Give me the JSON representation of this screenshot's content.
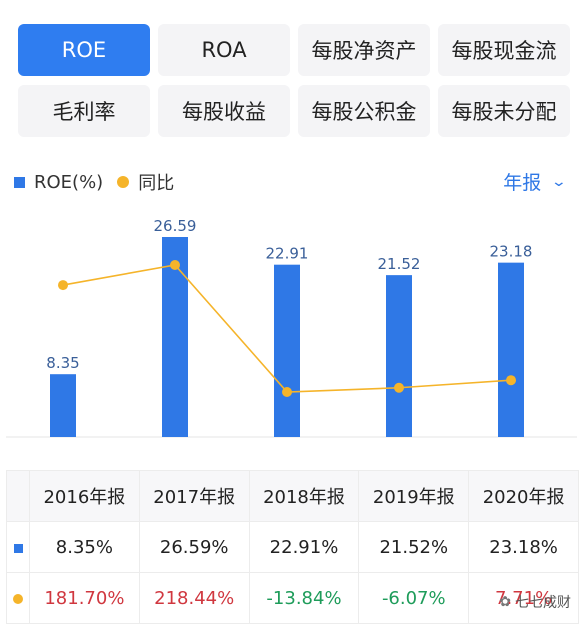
{
  "tabs": [
    "ROE",
    "ROA",
    "每股净资产",
    "每股现金流",
    "毛利率",
    "每股收益",
    "每股公积金",
    "每股未分配"
  ],
  "active_tab": "ROE",
  "legend": {
    "bar_label": "ROE(%)",
    "line_label": "同比"
  },
  "period_selector": {
    "label": "年报",
    "icon": "chevron-down-icon"
  },
  "colors": {
    "accent": "#2f7df0",
    "bar": "#2f78e6",
    "line": "#f5b42a",
    "positive": "#d0373f",
    "negative": "#1e9c5a"
  },
  "chart_data": {
    "type": "bar",
    "categories": [
      "2016年报",
      "2017年报",
      "2018年报",
      "2019年报",
      "2020年报"
    ],
    "series": [
      {
        "name": "ROE(%)",
        "type": "bar",
        "values": [
          8.35,
          26.59,
          22.91,
          21.52,
          23.18
        ]
      },
      {
        "name": "同比",
        "type": "line",
        "values": [
          181.7,
          218.44,
          -13.84,
          -6.07,
          7.71
        ]
      }
    ],
    "data_labels": [
      "8.35",
      "26.59",
      "22.91",
      "21.52",
      "23.18"
    ],
    "legend": "top-left"
  },
  "table": {
    "headers": [
      "2016年报",
      "2017年报",
      "2018年报",
      "2019年报",
      "2020年报"
    ],
    "roe_row": [
      "8.35%",
      "26.59%",
      "22.91%",
      "21.52%",
      "23.18%"
    ],
    "yoy_row": [
      "181.70%",
      "218.44%",
      "-13.84%",
      "-6.07%",
      "7.71%"
    ]
  },
  "watermark": "七七成财"
}
